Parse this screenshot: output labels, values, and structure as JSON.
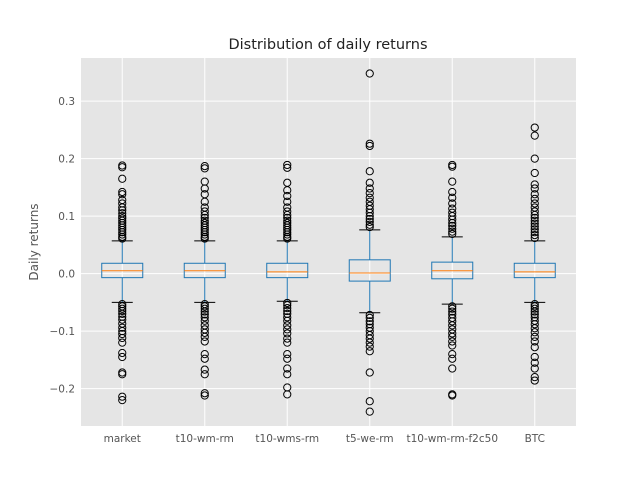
{
  "chart_data": {
    "type": "box",
    "title": "Distribution of daily returns",
    "xlabel": "",
    "ylabel": "Daily returns",
    "ylim": [
      -0.265,
      0.375
    ],
    "yticks": [
      -0.2,
      -0.1,
      0.0,
      0.1,
      0.2,
      0.3
    ],
    "ytick_labels": [
      "−0.2",
      "−0.1",
      "0.0",
      "0.1",
      "0.2",
      "0.3"
    ],
    "grid": true,
    "categories": [
      "market",
      "t10-wm-rm",
      "t10-wms-rm",
      "t5-we-rm",
      "t10-wm-rm-f2c50",
      "BTC"
    ],
    "series": [
      {
        "q1": -0.007,
        "median": 0.005,
        "q3": 0.018,
        "whisker_low": -0.05,
        "whisker_high": 0.057,
        "outliers": [
          0.188,
          0.185,
          0.165,
          0.142,
          0.138,
          0.128,
          0.122,
          0.115,
          0.11,
          0.105,
          0.1,
          0.096,
          0.092,
          0.088,
          0.084,
          0.08,
          0.076,
          0.072,
          0.068,
          0.064,
          0.061,
          -0.053,
          -0.057,
          -0.061,
          -0.065,
          -0.07,
          -0.075,
          -0.08,
          -0.087,
          -0.094,
          -0.1,
          -0.105,
          -0.112,
          -0.12,
          -0.138,
          -0.145,
          -0.172,
          -0.175,
          -0.214,
          -0.22
        ]
      },
      {
        "q1": -0.007,
        "median": 0.005,
        "q3": 0.018,
        "whisker_low": -0.05,
        "whisker_high": 0.057,
        "outliers": [
          0.187,
          0.183,
          0.16,
          0.148,
          0.138,
          0.125,
          0.115,
          0.108,
          0.102,
          0.097,
          0.092,
          0.088,
          0.084,
          0.08,
          0.076,
          0.072,
          0.068,
          0.064,
          0.061,
          -0.053,
          -0.057,
          -0.061,
          -0.066,
          -0.071,
          -0.076,
          -0.082,
          -0.09,
          -0.097,
          -0.103,
          -0.11,
          -0.118,
          -0.14,
          -0.148,
          -0.167,
          -0.175,
          -0.208,
          -0.212
        ]
      },
      {
        "q1": -0.007,
        "median": 0.003,
        "q3": 0.018,
        "whisker_low": -0.048,
        "whisker_high": 0.057,
        "outliers": [
          0.189,
          0.184,
          0.158,
          0.145,
          0.135,
          0.125,
          0.115,
          0.108,
          0.102,
          0.097,
          0.092,
          0.088,
          0.084,
          0.08,
          0.076,
          0.072,
          0.068,
          0.064,
          0.061,
          -0.051,
          -0.055,
          -0.06,
          -0.065,
          -0.07,
          -0.076,
          -0.082,
          -0.09,
          -0.097,
          -0.104,
          -0.113,
          -0.12,
          -0.14,
          -0.148,
          -0.165,
          -0.175,
          -0.198,
          -0.21
        ]
      },
      {
        "q1": -0.013,
        "median": 0.001,
        "q3": 0.024,
        "whisker_low": -0.068,
        "whisker_high": 0.076,
        "outliers": [
          0.348,
          0.226,
          0.222,
          0.178,
          0.158,
          0.148,
          0.14,
          0.132,
          0.125,
          0.118,
          0.112,
          0.106,
          0.1,
          0.095,
          0.09,
          0.085,
          0.081,
          -0.072,
          -0.077,
          -0.083,
          -0.088,
          -0.094,
          -0.1,
          -0.107,
          -0.113,
          -0.12,
          -0.127,
          -0.135,
          -0.172,
          -0.222,
          -0.24
        ]
      },
      {
        "q1": -0.009,
        "median": 0.005,
        "q3": 0.02,
        "whisker_low": -0.053,
        "whisker_high": 0.064,
        "outliers": [
          0.189,
          0.186,
          0.16,
          0.142,
          0.132,
          0.122,
          0.113,
          0.106,
          0.1,
          0.094,
          0.088,
          0.083,
          0.078,
          0.073,
          0.069,
          -0.057,
          -0.061,
          -0.066,
          -0.071,
          -0.077,
          -0.083,
          -0.09,
          -0.097,
          -0.104,
          -0.11,
          -0.118,
          -0.125,
          -0.14,
          -0.148,
          -0.165,
          -0.21,
          -0.212
        ]
      },
      {
        "q1": -0.007,
        "median": 0.003,
        "q3": 0.018,
        "whisker_low": -0.05,
        "whisker_high": 0.057,
        "outliers": [
          0.254,
          0.24,
          0.2,
          0.175,
          0.155,
          0.148,
          0.138,
          0.13,
          0.122,
          0.115,
          0.108,
          0.102,
          0.097,
          0.092,
          0.087,
          0.082,
          0.077,
          0.072,
          0.067,
          0.062,
          -0.053,
          -0.057,
          -0.061,
          -0.066,
          -0.071,
          -0.076,
          -0.082,
          -0.088,
          -0.095,
          -0.102,
          -0.11,
          -0.118,
          -0.128,
          -0.145,
          -0.155,
          -0.165,
          -0.18,
          -0.186
        ]
      }
    ],
    "colors": {
      "box": "#1f77b4",
      "median": "#ff7f0e",
      "whisker": "#000000",
      "outlier": "#000000",
      "background": "#e5e5e5",
      "grid": "#ffffff"
    }
  }
}
